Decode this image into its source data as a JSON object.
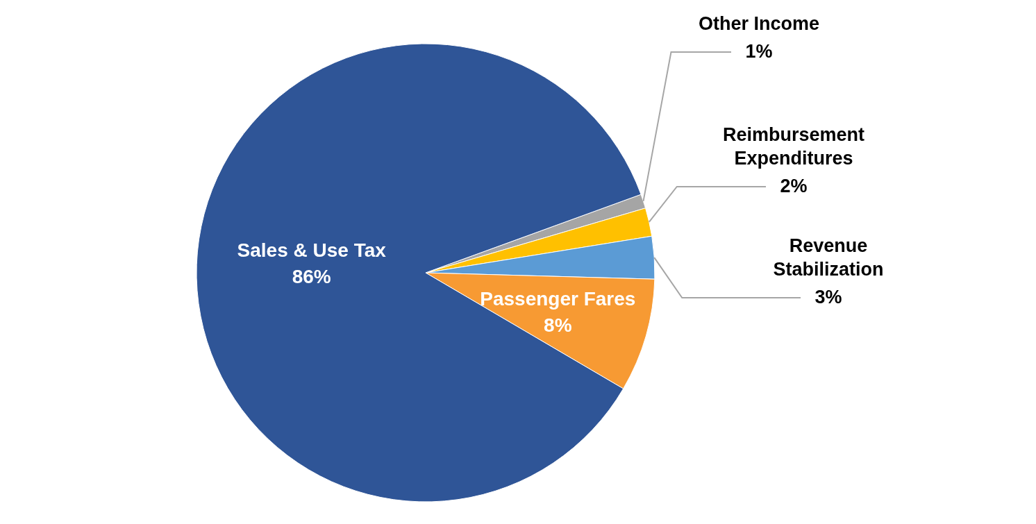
{
  "chart_data": {
    "type": "pie",
    "categories": [
      "Other Income",
      "Reimbursement Expenditures",
      "Revenue Stabilization",
      "Passenger Fares",
      "Sales & Use Tax"
    ],
    "values": [
      1,
      2,
      3,
      8,
      86
    ],
    "colors": [
      "#a5a5a5",
      "#ffc000",
      "#5b9bd5",
      "#f79a33",
      "#2f5597"
    ],
    "value_labels": [
      "1%",
      "2%",
      "3%",
      "8%",
      "86%"
    ]
  }
}
